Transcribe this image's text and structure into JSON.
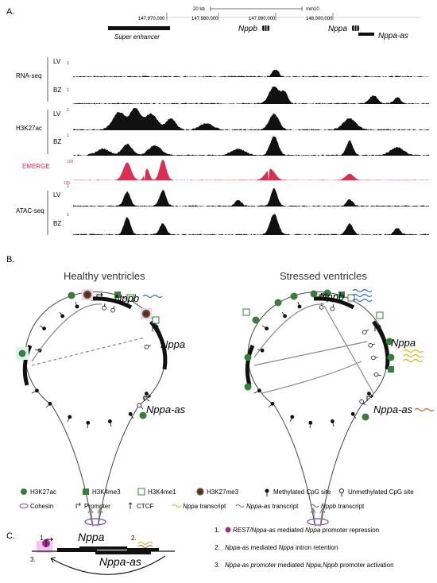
{
  "panelA": {
    "label": "A.",
    "scale": "20 kb",
    "assembly": "mm10",
    "coords": [
      "147,970,000",
      "147,980,000",
      "147,990,000",
      "148,000,000"
    ],
    "super_enhancer": "Super enhancer",
    "genes": [
      "Nppb",
      "Nppa",
      "Nppa-as"
    ],
    "tracks": [
      {
        "group": "RNA-seq",
        "sub": "LV",
        "max": "1",
        "color": "#111111"
      },
      {
        "group": "RNA-seq",
        "sub": "BZ",
        "max": "1",
        "color": "#111111"
      },
      {
        "group": "H3K27ac",
        "sub": "LV",
        "max": "1",
        "color": "#111111"
      },
      {
        "group": "H3K27ac",
        "sub": "BZ",
        "max": "1",
        "color": "#111111"
      },
      {
        "group": "EMERGE",
        "sub": "",
        "max": "100",
        "color": "#d9304f"
      },
      {
        "group": "ATAC-seq",
        "sub": "LV",
        "max": "1",
        "color": "#111111"
      },
      {
        "group": "ATAC-seq",
        "sub": "BZ",
        "max": "1",
        "color": "#111111"
      }
    ],
    "groups": [
      "RNA-seq",
      "H3K27ac",
      "EMERGE",
      "ATAC-seq"
    ],
    "subs": [
      "LV",
      "BZ"
    ],
    "emerge_scale": [
      "100",
      "100"
    ]
  },
  "panelB": {
    "label": "B.",
    "left_title": "Healthy ventricles",
    "right_title": "Stressed ventricles",
    "genes": [
      "Nppb",
      "Nppa",
      "Nppa-as"
    ],
    "legend": [
      {
        "icon": "h3k27ac",
        "text": "H3K27ac"
      },
      {
        "icon": "h3k4me3",
        "text": "H3K4me3"
      },
      {
        "icon": "h3k4me1",
        "text": "H3K4me1"
      },
      {
        "icon": "h3k27me3",
        "text": "H3K27me3"
      },
      {
        "icon": "methylated",
        "text": "Methylated CpG site"
      },
      {
        "icon": "unmethylated",
        "text": "Unmethylated CpG site"
      },
      {
        "icon": "cohesin",
        "text": "Cohesin"
      },
      {
        "icon": "promoter",
        "text": "Promoter"
      },
      {
        "icon": "ctcf",
        "text": "CTCF"
      },
      {
        "icon": "nppa-tx",
        "text_gene": "Nppa",
        "text": " transcript"
      },
      {
        "icon": "nppaas-tx",
        "text_gene": "Nppa-as",
        "text": " transcript"
      },
      {
        "icon": "nppb-tx",
        "text_gene": "Nppb",
        "text": " transcript"
      }
    ],
    "colors": {
      "green": "#3a7d3a",
      "maroon": "#7a1f1f",
      "pink": "#f4a9e6",
      "cohesin": "#7b3fb0",
      "nppa": "#e0b000",
      "nppaas": "#c0622a",
      "nppb": "#2b6bc4"
    }
  },
  "panelC": {
    "label": "C.",
    "gene_top": "Nppa",
    "gene_bottom": "Nppa-as",
    "markers": [
      "1.",
      "2.",
      "3."
    ],
    "notes": [
      {
        "num": "1.",
        "parts": [
          {
            "t": "REST/Nppa-as",
            "i": true
          },
          {
            "t": " mediated ",
            "i": false
          },
          {
            "t": "Nppa",
            "i": true
          },
          {
            "t": " promoter repression",
            "i": false
          }
        ]
      },
      {
        "num": "2.",
        "parts": [
          {
            "t": "Nppa-as",
            "i": true
          },
          {
            "t": " mediated ",
            "i": false
          },
          {
            "t": "Nppa",
            "i": true
          },
          {
            "t": " intron retention",
            "i": false
          }
        ]
      },
      {
        "num": "3.",
        "parts": [
          {
            "t": "Nppa-as promoter",
            "i": true
          },
          {
            "t": " mediated ",
            "i": false
          },
          {
            "t": "Nppa,Nppb",
            "i": true
          },
          {
            "t": " promoter activation",
            "i": false
          }
        ]
      }
    ]
  }
}
